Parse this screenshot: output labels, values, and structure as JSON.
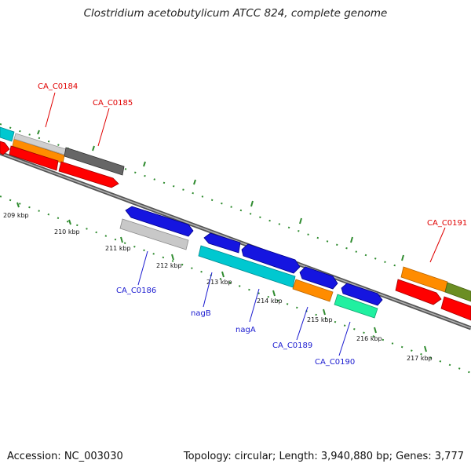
{
  "title": "Clostridium acetobutylicum ATCC 824, complete genome",
  "accession": "Accession: NC_003030",
  "topology": "Topology: circular; Length: 3,940,880 bp; Genes: 3,777",
  "colors": {
    "backbone": "#808080",
    "tick": "#2e8b2e",
    "forward_label": "#e00000",
    "reverse_label": "#1a1ad0"
  },
  "scale_labels": [
    "209 kbp",
    "210 kbp",
    "211 kbp",
    "212 kbp",
    "213 kbp",
    "214 kbp",
    "215 kbp",
    "216 kbp",
    "217 kbp"
  ],
  "gene_labels": {
    "ca_c0184": "CA_C0184",
    "ca_c0185": "CA_C0185",
    "ca_c0191": "CA_C0191",
    "ca_c0186": "CA_C0186",
    "nagb": "nagB",
    "naga": "nagA",
    "ca_c0189": "CA_C0189",
    "ca_c0190": "CA_C0190"
  }
}
